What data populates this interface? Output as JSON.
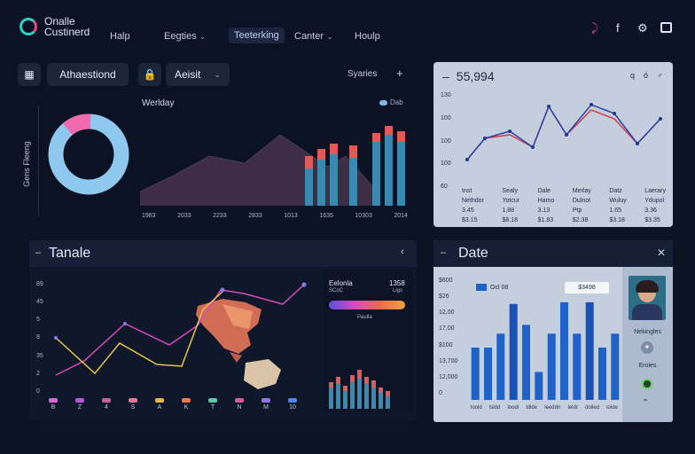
{
  "app": {
    "logo_line1": "Onalle",
    "logo_line2": "Custinerd"
  },
  "nav": [
    {
      "label": "Halp",
      "chevron": false
    },
    {
      "label": "Eegties",
      "chevron": true
    },
    {
      "label": "Teeterking",
      "chevron": false
    },
    {
      "label": "Canter",
      "chevron": true
    },
    {
      "label": "Houlp",
      "chevron": false
    }
  ],
  "top_icons": [
    "pin-icon",
    "facebook-icon",
    "settings-icon",
    "window-icon"
  ],
  "toolbar": {
    "left_button": "Athaestiond",
    "select_label": "Aeisit",
    "series_label": "Syaries",
    "add_symbol": "+"
  },
  "donut_panel": {
    "side_label": "Gens Fleeng",
    "donut": {
      "segment_value": 0.12,
      "colors": [
        "#f06ab0",
        "#8fc8ee"
      ]
    }
  },
  "weekly_chart": {
    "title": "Werlday",
    "legend": "Dab",
    "x_labels": [
      "1983",
      "2033",
      "2233",
      "2833",
      "1013",
      "1635",
      "10303",
      "2014"
    ]
  },
  "line_card": {
    "value": "55,994",
    "icons": [
      "q",
      "ó",
      "♂"
    ],
    "y_labels": [
      "130",
      "100",
      "100",
      "100",
      "60"
    ],
    "columns": [
      {
        "head": "Inst",
        "rows": [
          "Nethdor",
          "3.45",
          "$3.15"
        ]
      },
      {
        "head": "Sealy",
        "rows": [
          "Yotcur",
          "1,88",
          "$8.18"
        ]
      },
      {
        "head": "Dale",
        "rows": [
          "Hamo",
          "3.13",
          "$1.83"
        ]
      },
      {
        "head": "Merlay",
        "rows": [
          "Dulnot",
          "Ptp",
          "$2.38"
        ]
      },
      {
        "head": "Datz",
        "rows": [
          "Wuluy",
          "1.65",
          "$3.18"
        ]
      },
      {
        "head": "Laerary",
        "rows": [
          "Ydupol",
          "3.36",
          "$3.35"
        ]
      }
    ]
  },
  "tanale_panel": {
    "title": "Tanale",
    "y_labels": [
      "89",
      "45",
      "5",
      "8",
      "35",
      "2",
      "0"
    ],
    "legend": [
      "B",
      "Z",
      "4",
      "S",
      "A",
      "K",
      "T",
      "N",
      "M",
      "10"
    ],
    "legend_colors": [
      "#d36ad9",
      "#b45ad4",
      "#c7639a",
      "#e07a9c",
      "#e8b44c",
      "#f07b50",
      "#62c7a8",
      "#d85aa0",
      "#9076e4",
      "#4f86e8"
    ],
    "sub_title": "Eelonla",
    "sub_code": "SCoC",
    "sub_value": "1358",
    "sub_value2": "Ligs",
    "sub_caption": "Paulla"
  },
  "date_panel": {
    "title": "Date",
    "y_labels": [
      "$600",
      "$26",
      "12,00",
      "17,00",
      "$100",
      "13,700",
      "12,000",
      "0"
    ],
    "legend": "Ocl 08",
    "badge": "$3498",
    "x_labels": [
      "loold",
      "lsldd",
      "loodl",
      "ldlde",
      "leeddn",
      "leldr",
      "dolled",
      "lolde"
    ],
    "bars": [
      30,
      30,
      38,
      55,
      43,
      16,
      38,
      56,
      38,
      56,
      30,
      38
    ],
    "profile_name": "Nekingles",
    "profile_tag": "Eroies"
  },
  "colors": {
    "accent_teal": "#2fd0c6",
    "accent_pink": "#f0467a",
    "chart_blue": "#1f62c8"
  }
}
